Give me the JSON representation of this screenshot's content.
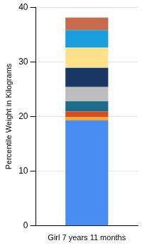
{
  "chart_data": {
    "type": "bar",
    "y_label": "Percentile Weight in Kilograms",
    "categories": [
      "Girl 7 years 11 months"
    ],
    "stacked": true,
    "series": [
      {
        "color": "#4a8cf0",
        "values": [
          19.3
        ]
      },
      {
        "color": "#f2a93b",
        "values": [
          0.6
        ]
      },
      {
        "color": "#e04a1f",
        "values": [
          1.0
        ]
      },
      {
        "color": "#1d6c8e",
        "values": [
          1.9
        ]
      },
      {
        "color": "#bdbdbd",
        "values": [
          2.6
        ]
      },
      {
        "color": "#1c3864",
        "values": [
          3.5
        ]
      },
      {
        "color": "#fde18a",
        "values": [
          3.7
        ]
      },
      {
        "color": "#199fdd",
        "values": [
          3.2
        ]
      },
      {
        "color": "#c86a4c",
        "values": [
          2.3
        ]
      }
    ],
    "ylim": [
      0,
      40
    ],
    "yticks": [
      0,
      10,
      20,
      30,
      40
    ],
    "grid": true
  }
}
